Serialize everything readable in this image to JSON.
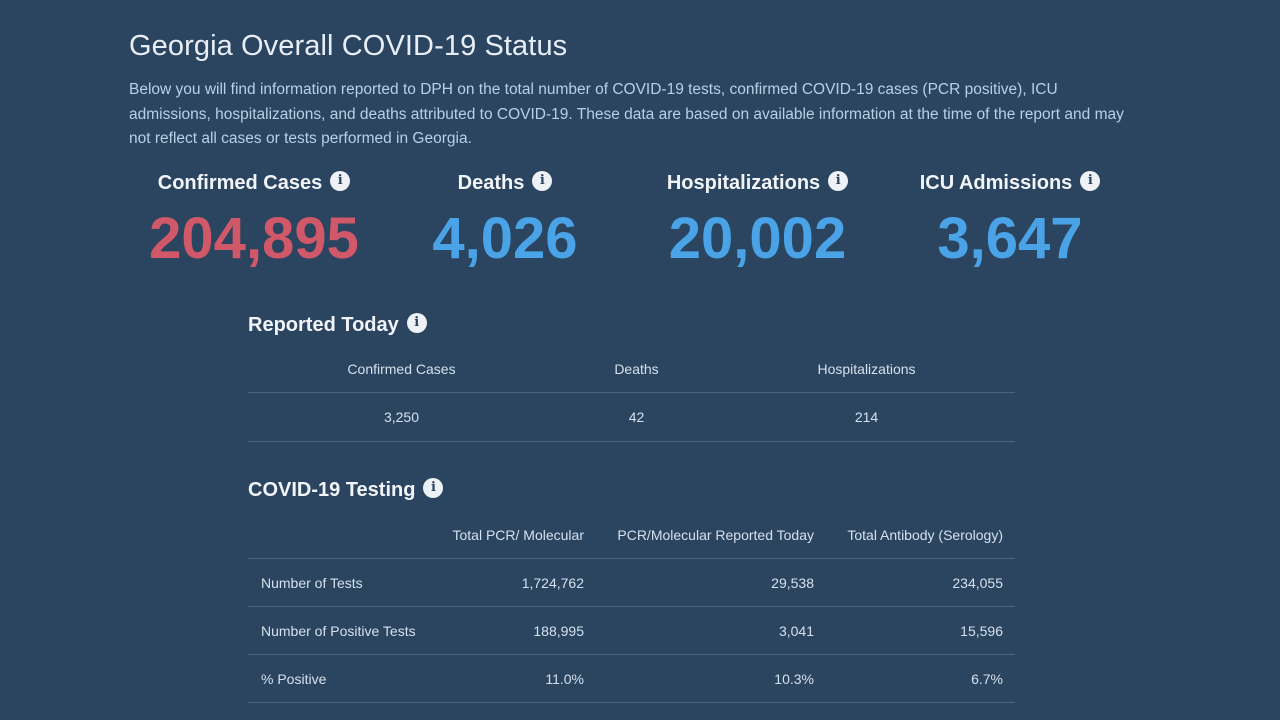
{
  "header": {
    "title": "Georgia Overall COVID-19 Status",
    "intro": "Below you will find information reported to DPH on the total number of COVID-19 tests, confirmed COVID-19 cases (PCR positive), ICU admissions, hospitalizations, and deaths attributed to COVID-19. These data are based on available information at the time of the report and may not reflect all cases or tests performed in Georgia."
  },
  "colors": {
    "background": "#2b4460",
    "cases_red": "#d05868",
    "stat_blue": "#4aa3e6"
  },
  "icons": {
    "info": "i"
  },
  "totals": [
    {
      "label": "Confirmed Cases",
      "value": "204,895",
      "color": "red"
    },
    {
      "label": "Deaths",
      "value": "4,026",
      "color": "blue"
    },
    {
      "label": "Hospitalizations",
      "value": "20,002",
      "color": "blue"
    },
    {
      "label": "ICU Admissions",
      "value": "3,647",
      "color": "blue"
    }
  ],
  "reported_today": {
    "title": "Reported Today",
    "columns": [
      "Confirmed Cases",
      "Deaths",
      "Hospitalizations"
    ],
    "values": [
      "3,250",
      "42",
      "214"
    ]
  },
  "testing": {
    "title": "COVID-19 Testing",
    "columns": [
      "",
      "Total PCR/ Molecular",
      "PCR/Molecular Reported Today",
      "Total Antibody (Serology)"
    ],
    "rows": [
      {
        "label": "Number of Tests",
        "values": [
          "1,724,762",
          "29,538",
          "234,055"
        ]
      },
      {
        "label": "Number of Positive Tests",
        "values": [
          "188,995",
          "3,041",
          "15,596"
        ]
      },
      {
        "label": "% Positive",
        "values": [
          "11.0%",
          "10.3%",
          "6.7%"
        ]
      }
    ]
  }
}
